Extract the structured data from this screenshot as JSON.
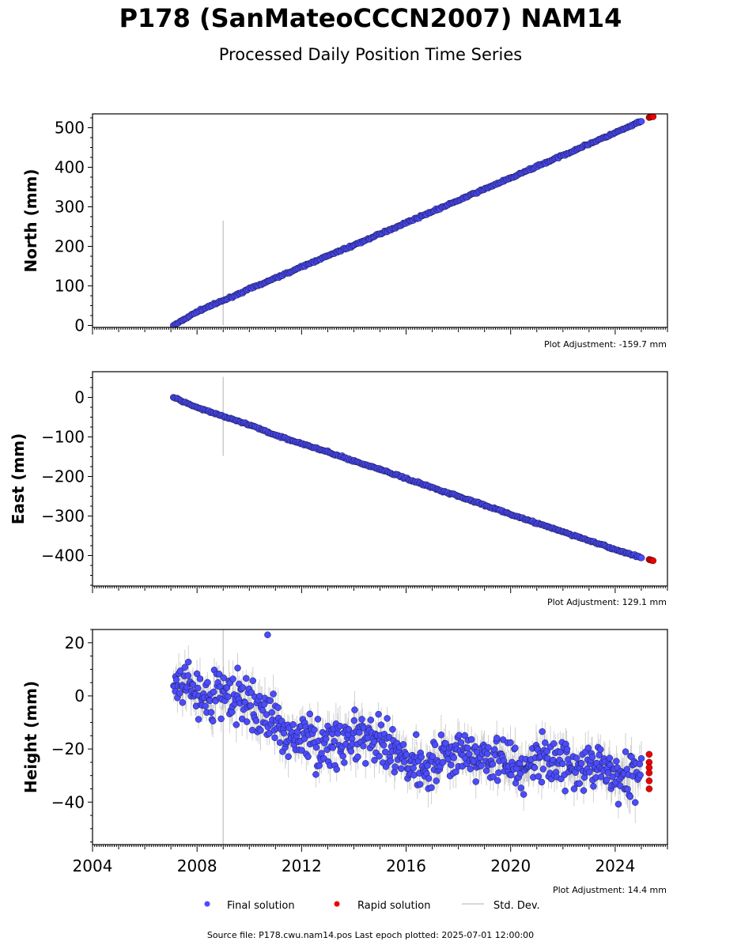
{
  "title": "P178 (SanMateoCCCN2007) NAM14",
  "subtitle": "Processed Daily Position Time Series",
  "legend": {
    "final": "Final solution",
    "rapid": "Rapid solution",
    "std": "Std. Dev."
  },
  "source": "Source file: P178.cwu.nam14.pos  Last epoch plotted: 2025-07-01 12:00:00",
  "colors": {
    "final": "#4b4bff",
    "rapid": "#ee0000",
    "std": "#bbbbbb"
  },
  "chart_data": [
    {
      "type": "scatter",
      "ylabel": "North (mm)",
      "adjustment": "Plot Adjustment: -159.7 mm",
      "xlim": [
        2004.0,
        2026.0
      ],
      "ylim": [
        -5,
        535
      ],
      "yticks": [
        0,
        100,
        200,
        300,
        400,
        500
      ],
      "ytick_labels": [
        "0",
        "100",
        "200",
        "300",
        "400",
        "500"
      ],
      "final_series": {
        "x": [
          2007.1,
          2008.0,
          2009.0,
          2010.0,
          2011.0,
          2012.0,
          2013.0,
          2014.0,
          2015.0,
          2016.0,
          2017.0,
          2018.0,
          2019.0,
          2020.0,
          2021.0,
          2022.0,
          2023.0,
          2024.0,
          2025.0
        ],
        "y": [
          0,
          35,
          63,
          92,
          120,
          148,
          176,
          203,
          231,
          260,
          288,
          316,
          345,
          373,
          402,
          430,
          459,
          487,
          516
        ]
      },
      "rapid_series": {
        "x": [
          2025.3,
          2025.35,
          2025.4,
          2025.45
        ],
        "y": [
          526,
          527,
          528,
          528
        ]
      },
      "outlier_std": {
        "x": 2009.0,
        "y_range": [
          0,
          265
        ]
      }
    },
    {
      "type": "scatter",
      "ylabel": "East (mm)",
      "adjustment": "Plot Adjustment: 129.1 mm",
      "xlim": [
        2004.0,
        2026.0
      ],
      "ylim": [
        -477,
        65
      ],
      "yticks": [
        -400,
        -300,
        -200,
        -100,
        0
      ],
      "ytick_labels": [
        "−400",
        "−300",
        "−200",
        "−100",
        "0"
      ],
      "final_series": {
        "x": [
          2007.1,
          2008.0,
          2009.0,
          2010.0,
          2011.0,
          2012.0,
          2013.0,
          2014.0,
          2015.0,
          2016.0,
          2017.0,
          2018.0,
          2019.0,
          2020.0,
          2021.0,
          2022.0,
          2023.0,
          2024.0,
          2025.0
        ],
        "y": [
          0,
          -25,
          -48,
          -70,
          -95,
          -117,
          -138,
          -161,
          -182,
          -205,
          -228,
          -250,
          -272,
          -296,
          -318,
          -340,
          -362,
          -385,
          -405
        ]
      },
      "rapid_series": {
        "x": [
          2025.3,
          2025.35,
          2025.4,
          2025.45
        ],
        "y": [
          -410,
          -411,
          -412,
          -413
        ]
      },
      "outlier_std": {
        "x": 2009.0,
        "y_range": [
          -148,
          52
        ]
      }
    },
    {
      "type": "scatter",
      "ylabel": "Height (mm)",
      "adjustment": "Plot Adjustment: 14.4 mm",
      "xlim": [
        2004.0,
        2026.0
      ],
      "ylim": [
        -56,
        25
      ],
      "yticks": [
        -40,
        -20,
        0,
        20
      ],
      "ytick_labels": [
        "−40",
        "−20",
        "0",
        "20"
      ],
      "xticks": [
        2004,
        2008,
        2012,
        2016,
        2020,
        2024
      ],
      "xtick_labels": [
        "2004",
        "2008",
        "2012",
        "2016",
        "2020",
        "2024"
      ],
      "final_series": {
        "x": [
          2007.1,
          2007.5,
          2008.0,
          2008.5,
          2009.0,
          2009.5,
          2010.0,
          2010.5,
          2011.0,
          2011.5,
          2012.0,
          2012.5,
          2013.0,
          2013.5,
          2014.0,
          2014.5,
          2015.0,
          2015.5,
          2016.0,
          2016.5,
          2017.0,
          2017.5,
          2018.0,
          2018.5,
          2019.0,
          2019.5,
          2020.0,
          2020.5,
          2021.0,
          2021.5,
          2022.0,
          2022.5,
          2023.0,
          2023.5,
          2024.0,
          2024.5,
          2025.0
        ],
        "y": [
          2,
          4,
          1,
          -2,
          1,
          -1,
          -3,
          -6,
          -10,
          -14,
          -16,
          -17,
          -18,
          -17,
          -16,
          -17,
          -18,
          -21,
          -24,
          -25,
          -26,
          -22,
          -21,
          -22,
          -22,
          -24,
          -26,
          -27,
          -24,
          -23,
          -24,
          -26,
          -27,
          -28,
          -31,
          -30,
          -28
        ]
      },
      "rapid_series": {
        "x": [
          2025.3,
          2025.3,
          2025.3,
          2025.3,
          2025.3,
          2025.3
        ],
        "y": [
          -22,
          -25,
          -27,
          -29,
          -32,
          -35
        ]
      },
      "outlier_point": {
        "x": 2010.7,
        "y": 23
      },
      "outlier_std": {
        "x": 2009.0,
        "y_range": [
          -56,
          25
        ]
      }
    }
  ]
}
